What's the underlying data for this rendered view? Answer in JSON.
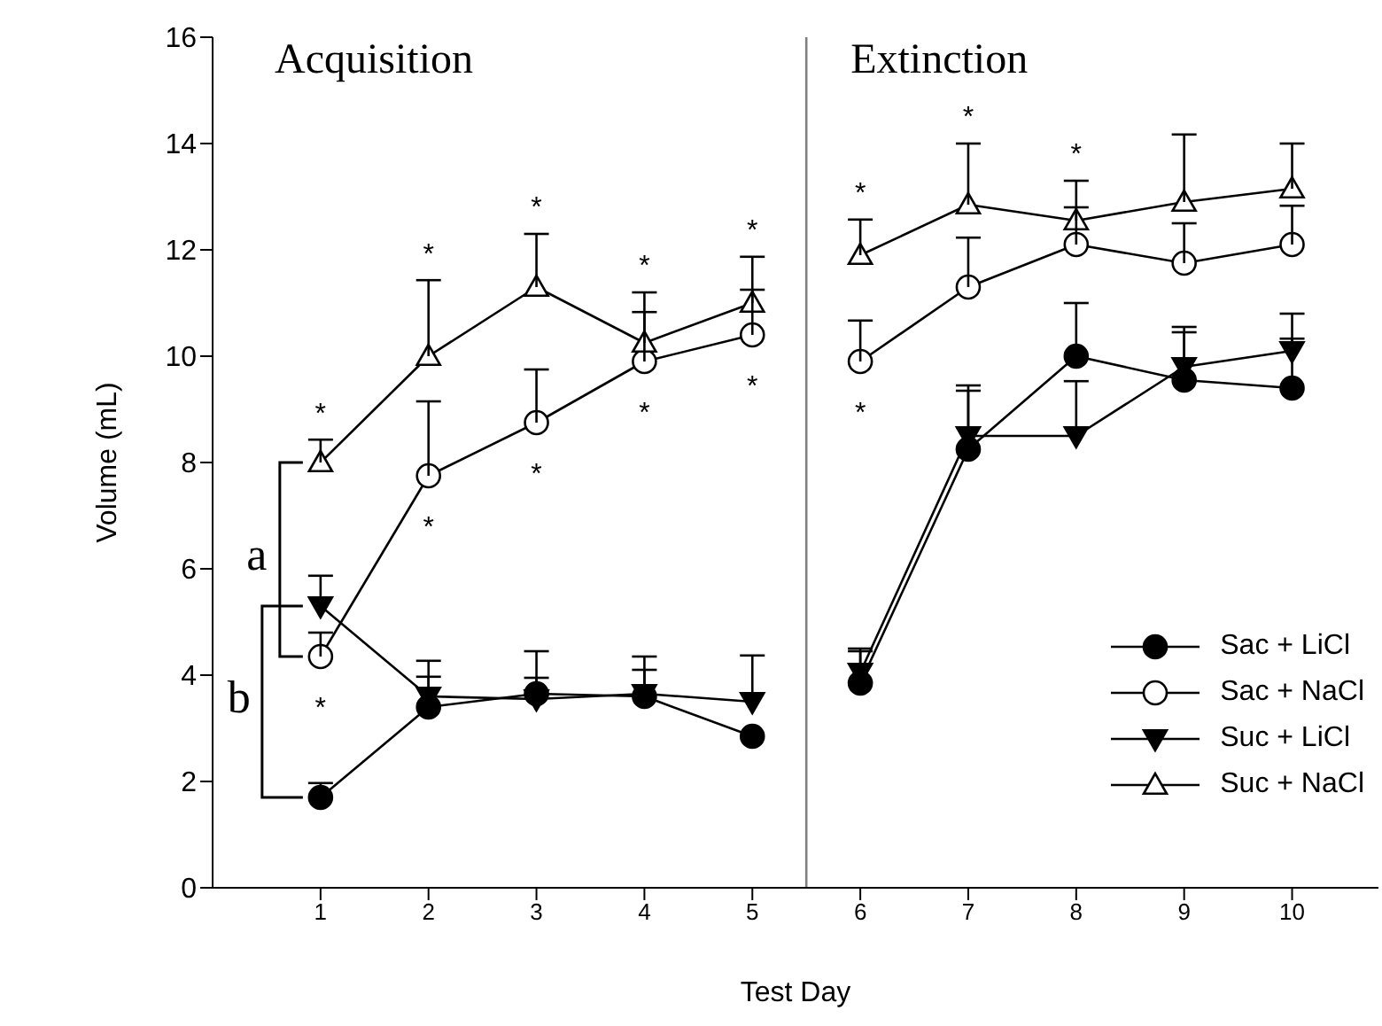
{
  "chart_data": {
    "type": "line",
    "xlabel": "Test Day",
    "ylabel": "Volume (mL)",
    "x": [
      1,
      2,
      3,
      4,
      5,
      6,
      7,
      8,
      9,
      10
    ],
    "xlim": [
      0,
      10.8
    ],
    "xticks": [
      1,
      2,
      3,
      4,
      5,
      6,
      7,
      8,
      9,
      10
    ],
    "ylim": [
      0,
      16
    ],
    "yticks": [
      0,
      2,
      4,
      6,
      8,
      10,
      12,
      14,
      16
    ],
    "grid": false,
    "legend": "bottom right",
    "series": [
      {
        "name": "Sac + LiCl",
        "color": "#000000",
        "marker": "circle",
        "values": [
          1.7,
          3.4,
          3.65,
          3.6,
          2.85,
          3.85,
          8.25,
          10.0,
          9.55,
          9.4
        ],
        "errors": [
          [
            1.7,
            1.97
          ],
          [
            3.4,
            3.97
          ],
          [
            3.65,
            4.45
          ],
          [
            3.6,
            4.1
          ],
          null,
          [
            3.85,
            4.45
          ],
          [
            8.25,
            9.45
          ],
          [
            10.0,
            11.0
          ],
          [
            9.55,
            10.55
          ],
          [
            9.4,
            10.33
          ]
        ]
      },
      {
        "name": "Sac + NaCl",
        "color": "#000000",
        "marker": "circle",
        "values": [
          4.35,
          7.75,
          8.75,
          9.9,
          10.4,
          9.9,
          11.3,
          12.1,
          11.75,
          12.1
        ],
        "errors": [
          [
            4.35,
            4.8
          ],
          [
            7.75,
            9.15
          ],
          [
            8.75,
            9.75
          ],
          [
            9.9,
            10.83
          ],
          [
            10.4,
            11.25
          ],
          [
            9.9,
            10.67
          ],
          [
            11.3,
            12.23
          ],
          [
            12.1,
            12.8
          ],
          [
            11.75,
            12.5
          ],
          [
            12.1,
            12.83
          ]
        ]
      },
      {
        "name": "Suc + LiCl",
        "color": "#000000",
        "marker": "triangle",
        "values": [
          5.3,
          3.6,
          3.55,
          3.65,
          3.5,
          4.05,
          8.5,
          8.5,
          9.8,
          10.1
        ],
        "errors": [
          [
            5.3,
            5.87
          ],
          [
            3.6,
            4.27
          ],
          [
            3.55,
            3.95
          ],
          [
            3.65,
            4.35
          ],
          [
            3.5,
            4.37
          ],
          [
            4.05,
            4.5
          ],
          [
            8.5,
            9.35
          ],
          [
            8.5,
            9.53
          ],
          [
            9.8,
            10.45
          ],
          [
            10.1,
            10.8
          ]
        ]
      },
      {
        "name": "Suc + NaCl",
        "color": "#000000",
        "marker": "triangle",
        "values": [
          8.0,
          10.0,
          11.3,
          10.25,
          11.0,
          11.9,
          12.85,
          12.55,
          12.9,
          13.15
        ],
        "errors": [
          [
            8.0,
            8.43
          ],
          [
            10.0,
            11.43
          ],
          [
            11.3,
            12.3
          ],
          [
            10.25,
            11.2
          ],
          [
            11.0,
            11.87
          ],
          [
            11.9,
            12.57
          ],
          [
            12.85,
            14.0
          ],
          [
            12.55,
            13.3
          ],
          [
            12.9,
            14.17
          ],
          [
            13.15,
            14.0
          ]
        ]
      }
    ],
    "ref_lines": [
      {
        "axis": "x",
        "value": 5.5,
        "color": "#808080"
      }
    ],
    "annotations": [
      "Acquisition",
      "Extinction",
      {
        "text": "a",
        "x": 1,
        "y": 8.0
      },
      {
        "text": "b",
        "x": 1,
        "y": 5.3
      },
      {
        "text": "*",
        "x": 1,
        "y": 8.43
      },
      {
        "text": "*",
        "x": 1,
        "y": 4.35
      },
      {
        "text": "*",
        "x": 2,
        "y": 11.43
      },
      {
        "text": "*",
        "x": 2,
        "y": 7.75
      },
      {
        "text": "*",
        "x": 3,
        "y": 12.3
      },
      {
        "text": "*",
        "x": 3,
        "y": 8.75
      },
      {
        "text": "*",
        "x": 4,
        "y": 11.2
      },
      {
        "text": "*",
        "x": 4,
        "y": 9.9
      },
      {
        "text": "*",
        "x": 5,
        "y": 11.87
      },
      {
        "text": "*",
        "x": 5,
        "y": 10.4
      },
      {
        "text": "*",
        "x": 6,
        "y": 12.57
      },
      {
        "text": "*",
        "x": 6,
        "y": 9.9
      },
      {
        "text": "*",
        "x": 7,
        "y": 14.0
      },
      {
        "text": "*",
        "x": 8,
        "y": 13.3
      }
    ]
  }
}
